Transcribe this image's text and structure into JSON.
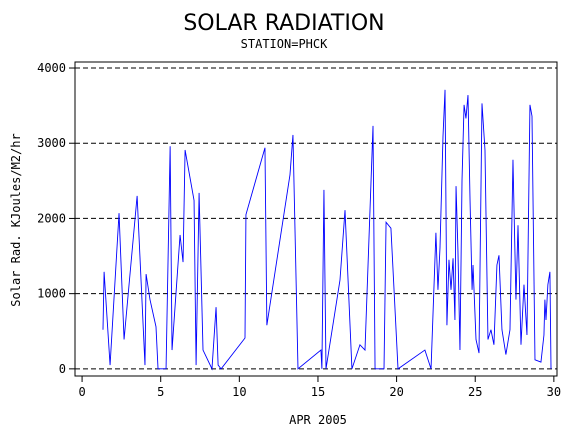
{
  "chart_data": {
    "type": "line",
    "title": "SOLAR RADIATION",
    "subtitle": "STATION=PHCK",
    "x_label": "APR 2005",
    "y_label": "Solar Rad. KJoules/M2/hr",
    "color": "#0000ff",
    "grid": true,
    "xlim": [
      -0.45,
      30.2
    ],
    "ylim": [
      -95,
      4080
    ],
    "xticks": [
      0,
      5,
      10,
      15,
      20,
      25,
      30
    ],
    "yticks": [
      0,
      1000,
      2000,
      3000,
      4000
    ],
    "x": [
      1.33,
      1.4,
      1.78,
      2.35,
      2.67,
      3.5,
      4.0,
      4.07,
      4.32,
      4.7,
      4.83,
      5.34,
      5.6,
      5.72,
      6.23,
      6.42,
      6.55,
      7.12,
      7.25,
      7.44,
      7.69,
      8.26,
      8.52,
      8.65,
      8.84,
      10.36,
      10.42,
      11.63,
      11.75,
      13.22,
      13.41,
      13.73,
      15.19,
      15.25,
      15.38,
      15.51,
      16.4,
      16.72,
      17.16,
      17.67,
      17.99,
      18.5,
      18.63,
      19.2,
      19.33,
      19.64,
      20.09,
      21.8,
      22.19,
      22.5,
      22.63,
      22.76,
      22.95,
      23.08,
      23.2,
      23.33,
      23.46,
      23.59,
      23.71,
      23.78,
      23.9,
      24.03,
      24.16,
      24.29,
      24.41,
      24.54,
      24.67,
      24.8,
      24.86,
      25.05,
      25.24,
      25.43,
      25.62,
      25.81,
      26.0,
      26.19,
      26.38,
      26.51,
      26.7,
      26.95,
      27.21,
      27.4,
      27.59,
      27.72,
      27.91,
      28.1,
      28.29,
      28.48,
      28.61,
      28.8,
      29.18,
      29.37,
      29.43,
      29.5,
      29.62,
      29.75,
      29.82
    ],
    "values": [
      520,
      1290,
      50,
      2070,
      390,
      2300,
      50,
      1260,
      920,
      560,
      0,
      0,
      2960,
      250,
      1780,
      1420,
      2910,
      2240,
      50,
      2340,
      250,
      0,
      820,
      50,
      0,
      410,
      2050,
      2940,
      580,
      2580,
      3110,
      0,
      250,
      0,
      2380,
      0,
      1180,
      2110,
      0,
      320,
      250,
      3230,
      0,
      0,
      1950,
      1870,
      0,
      250,
      0,
      1810,
      1050,
      1610,
      3090,
      3710,
      580,
      1450,
      1050,
      1470,
      650,
      2430,
      1580,
      250,
      2510,
      3510,
      3330,
      3640,
      2240,
      1050,
      1380,
      390,
      210,
      3530,
      2910,
      390,
      520,
      320,
      1380,
      1510,
      520,
      190,
      520,
      2780,
      920,
      1910,
      320,
      1120,
      450,
      3510,
      3360,
      120,
      90,
      450,
      920,
      650,
      1120,
      1290,
      0
    ]
  }
}
